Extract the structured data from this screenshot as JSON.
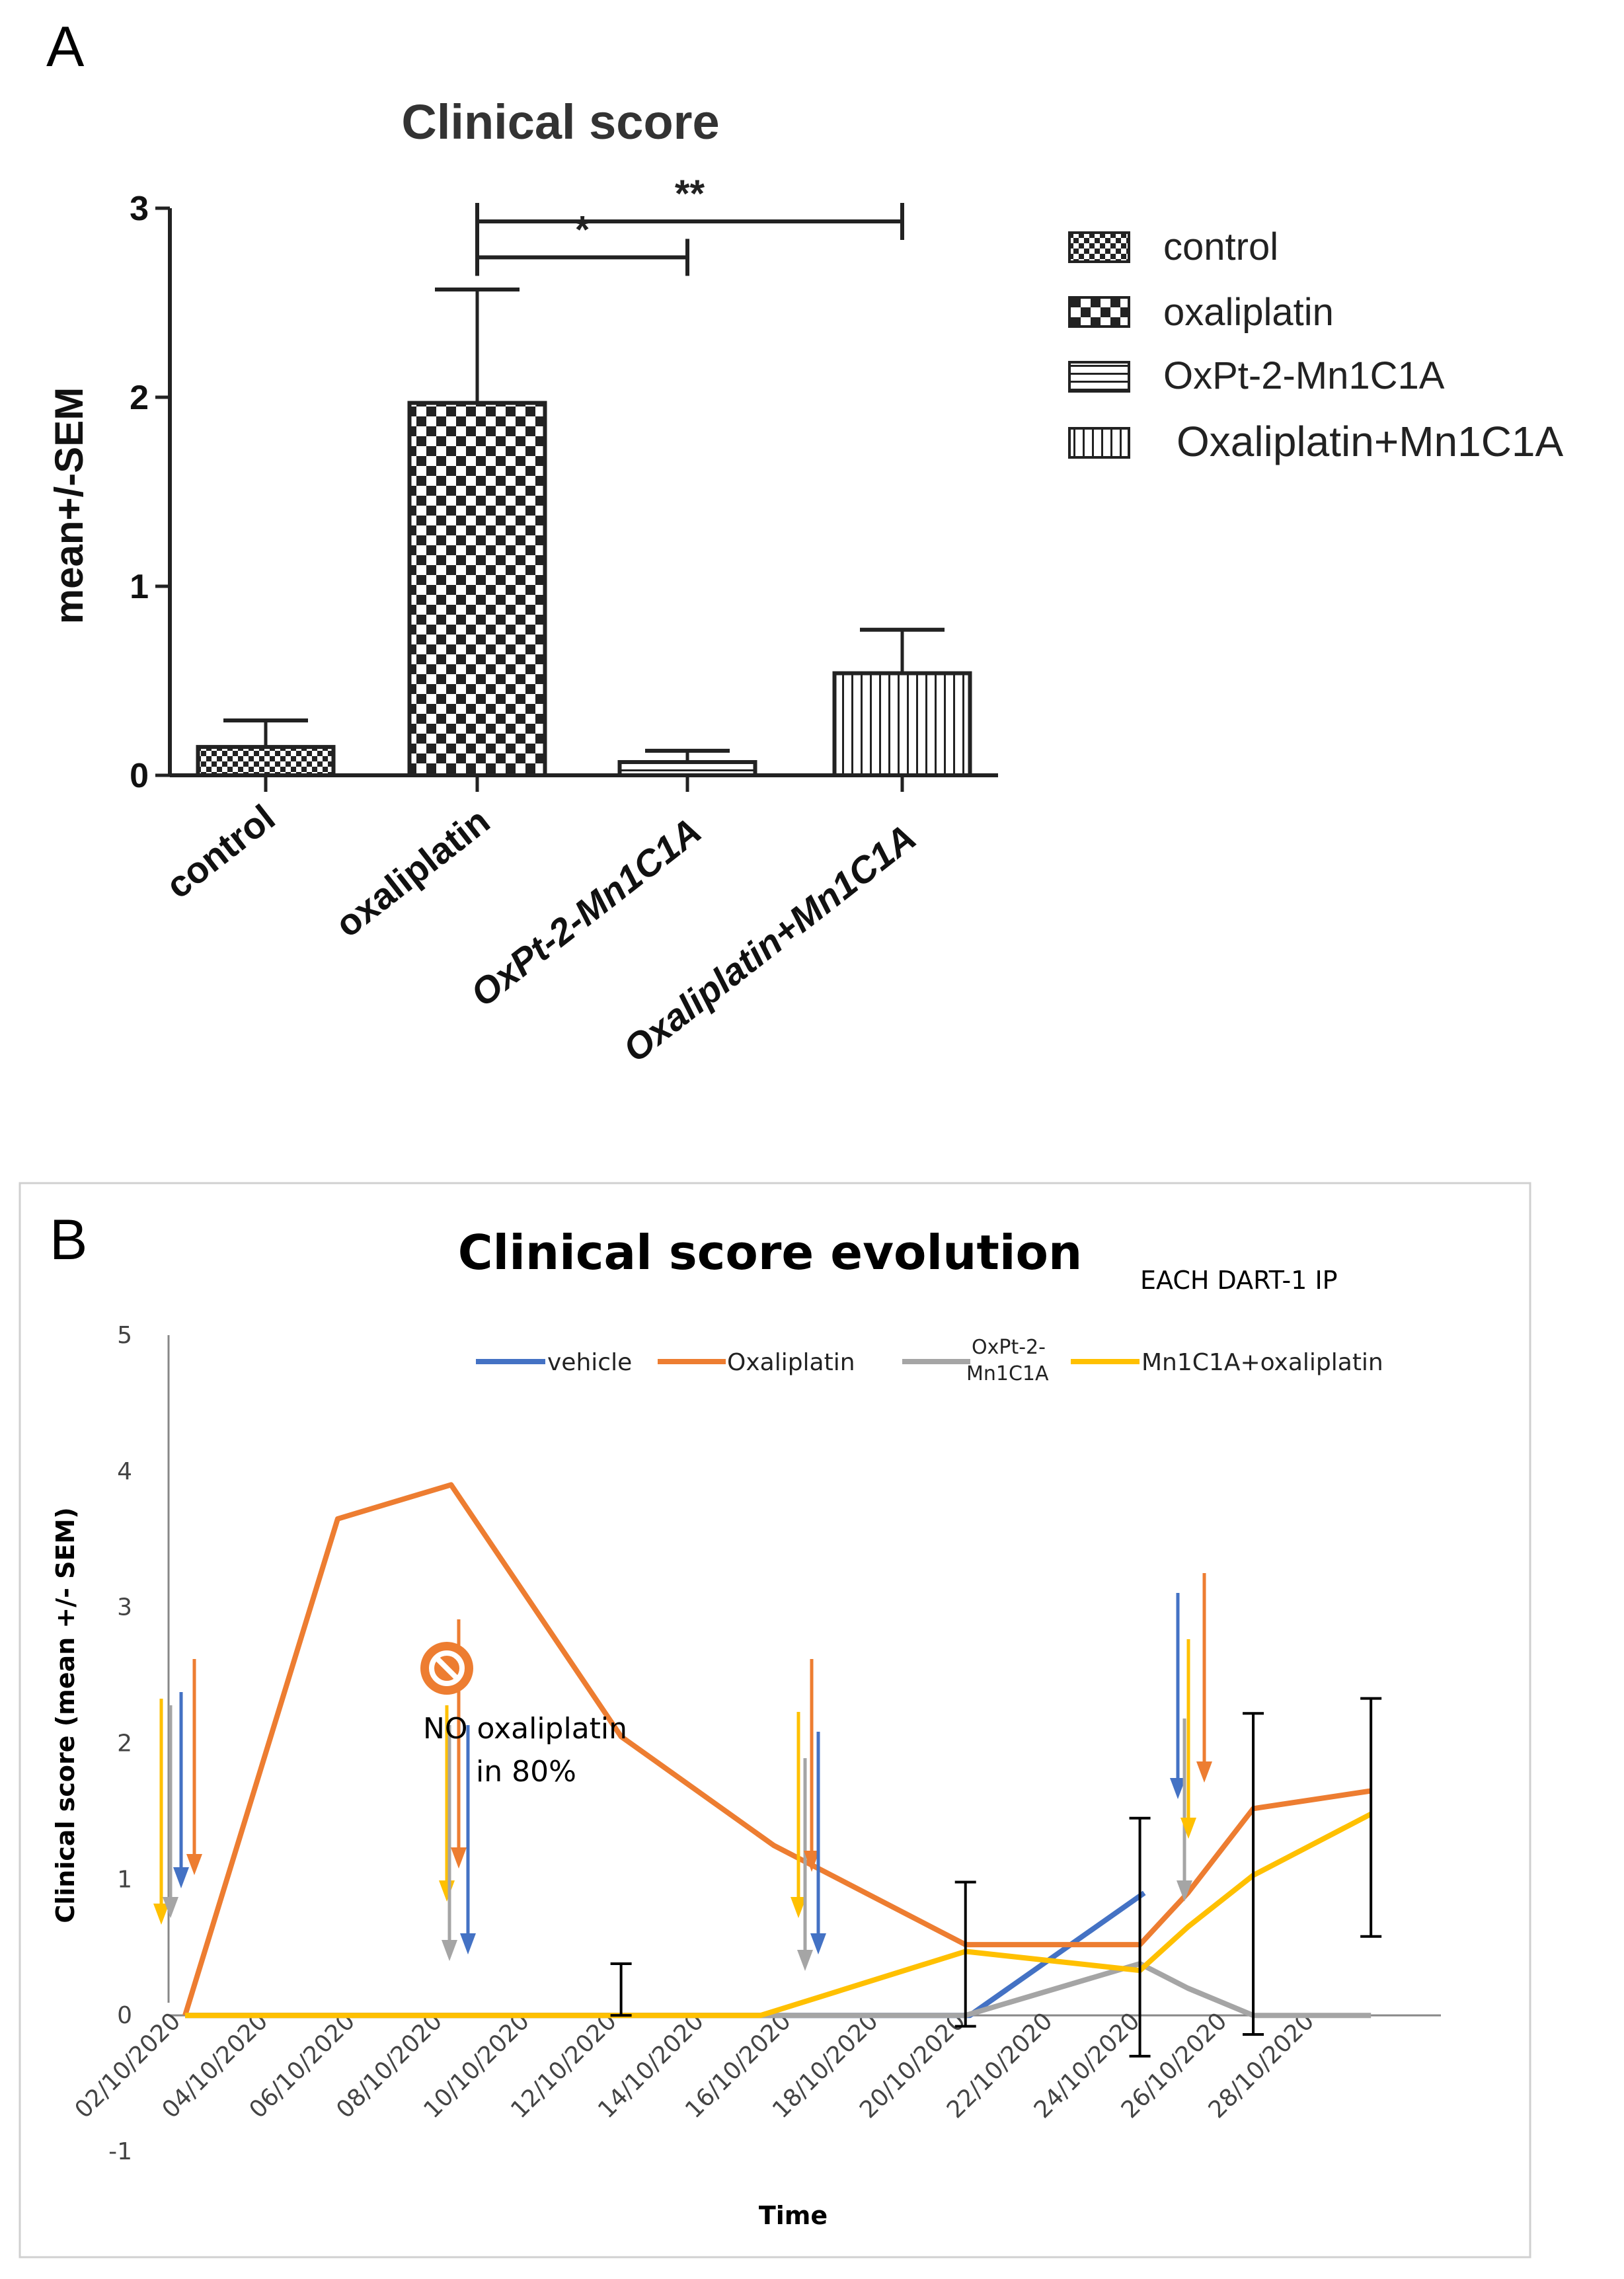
{
  "panel_a": {
    "letter": "A",
    "chart_data": {
      "type": "bar",
      "title": "Clinical score",
      "ylabel": "mean+/-SEM",
      "xlabel": "",
      "ylim": [
        0,
        3
      ],
      "yticks": [
        "0",
        "1",
        "2",
        "3"
      ],
      "categories": [
        "control",
        "oxaliplatin",
        "OxPt-2-Mn1C1A",
        "Oxaliplatin+Mn1C1A"
      ],
      "values": [
        0.15,
        1.97,
        0.07,
        0.54
      ],
      "errors": [
        0.14,
        0.6,
        0.06,
        0.23
      ],
      "legend": [
        "control",
        "oxaliplatin",
        "OxPt-2-Mn1C1A",
        "Oxaliplatin+Mn1C1A"
      ],
      "legend_position": "right",
      "annotations": [
        {
          "label": "*",
          "from": "oxaliplatin",
          "to": "OxPt-2-Mn1C1A",
          "y": 2.74
        },
        {
          "label": "**",
          "from": "oxaliplatin",
          "to": "Oxaliplatin+Mn1C1A",
          "y": 2.93
        }
      ]
    }
  },
  "panel_b": {
    "letter": "B",
    "chart_data": {
      "type": "line",
      "title": "Clinical score evolution",
      "subtitle": "EACH DART-1 IP",
      "ylabel": "Clinical score (mean +/- SEM)",
      "xlabel": "Time",
      "ylim": [
        -1,
        5
      ],
      "yticks": [
        "-1",
        "0",
        "1",
        "2",
        "3",
        "4",
        "5"
      ],
      "x_tick_labels": [
        "02/10/2020",
        "04/10/2020",
        "06/10/2020",
        "08/10/2020",
        "10/10/2020",
        "12/10/2020",
        "14/10/2020",
        "16/10/2020",
        "18/10/2020",
        "20/10/2020",
        "22/10/2020",
        "24/10/2020",
        "26/10/2020",
        "28/10/2020"
      ],
      "series": [
        {
          "name": "vehicle",
          "color": "#4472C4",
          "x": [
            2,
            8,
            14,
            16,
            20,
            24
          ],
          "y": [
            0,
            0,
            0,
            0,
            0,
            0.9
          ]
        },
        {
          "name": "Oxaliplatin",
          "color": "#ED7D31",
          "x": [
            2,
            5.5,
            8.1,
            12,
            15.5,
            19.9,
            23.9,
            25,
            26.5,
            29.2
          ],
          "y": [
            0,
            3.65,
            3.9,
            2.05,
            1.25,
            0.52,
            0.52,
            0.9,
            1.52,
            1.65
          ]
        },
        {
          "name": "OxPt-2-Mn1C1A",
          "color": "#A5A5A5",
          "x": [
            2,
            19.9,
            23.9,
            25,
            26.5,
            29.2
          ],
          "y": [
            0,
            0,
            0.38,
            0.2,
            0,
            0
          ]
        },
        {
          "name": "Mn1C1A+oxaliplatin",
          "color": "#FFC000",
          "x": [
            2,
            15.2,
            19.9,
            23.9,
            25,
            26.5,
            29.2
          ],
          "y": [
            0,
            0,
            0.47,
            0.33,
            0.65,
            1.03,
            1.48
          ]
        }
      ],
      "error_bars": [
        {
          "x": 12,
          "low": 0,
          "high": 0.38
        },
        {
          "x": 19.9,
          "low": -0.08,
          "high": 0.98
        },
        {
          "x": 23.9,
          "low": -0.3,
          "high": 1.45
        },
        {
          "x": 26.5,
          "low": -0.14,
          "high": 2.22
        },
        {
          "x": 29.2,
          "low": 0.58,
          "high": 2.33
        }
      ],
      "legend_position": "top",
      "annotation_text": [
        "NO oxaliplatin",
        "in 80%"
      ]
    }
  }
}
